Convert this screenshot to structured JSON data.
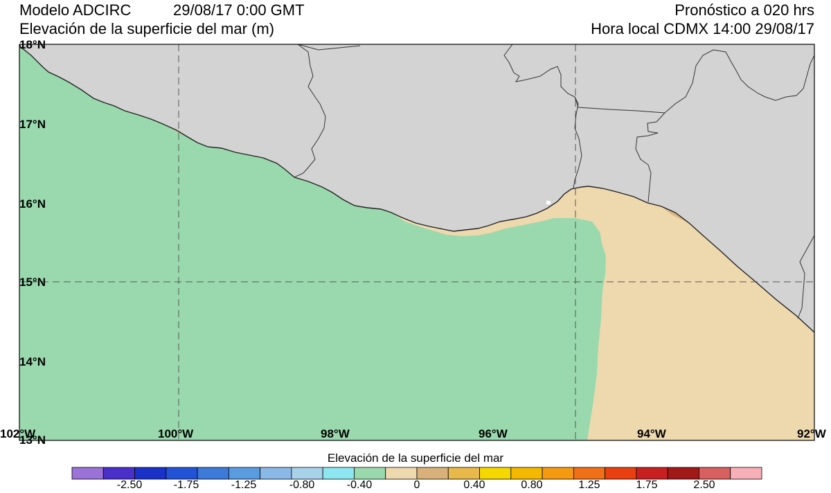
{
  "header": {
    "model": "Modelo ADCIRC",
    "datetime": "29/08/17 0:00 GMT",
    "variable": "Elevación de la superficie del mar (m)",
    "forecast": "Pronóstico a 020 hrs",
    "local_time": "Hora local CDMX 14:00 29/08/17"
  },
  "map": {
    "lat_labels": [
      "18°N",
      "17°N",
      "16°N",
      "15°N",
      "14°N",
      "13°N"
    ],
    "lon_labels": [
      "102°W",
      "100°W",
      "98°W",
      "96°W",
      "94°W",
      "92°W"
    ],
    "colors": {
      "land": "#d3d3d3",
      "sea_zero": "#9ad9ae",
      "sea_positive": "#eed8ae",
      "coast_tan": "#ddb884",
      "border": "#222222",
      "grid": "#555555"
    }
  },
  "colorbar": {
    "title": "Elevación de la superficie del mar",
    "labels": [
      "-2.50",
      "-1.75",
      "-1.25",
      "-0.80",
      "-0.40",
      "0",
      "0.40",
      "0.80",
      "1.25",
      "1.75",
      "2.50"
    ],
    "colors": [
      "#9b72d8",
      "#4a2fc9",
      "#1a32c8",
      "#2253d6",
      "#3e7ad9",
      "#5b9be0",
      "#8ab9e8",
      "#a8d2ea",
      "#8ee6f0",
      "#9ad9ae",
      "#eed8ae",
      "#d8b07a",
      "#e8b84a",
      "#f5d800",
      "#f5b800",
      "#f59a10",
      "#f07018",
      "#e84010",
      "#c82020",
      "#a01818",
      "#d86060",
      "#f8b0b8"
    ]
  }
}
